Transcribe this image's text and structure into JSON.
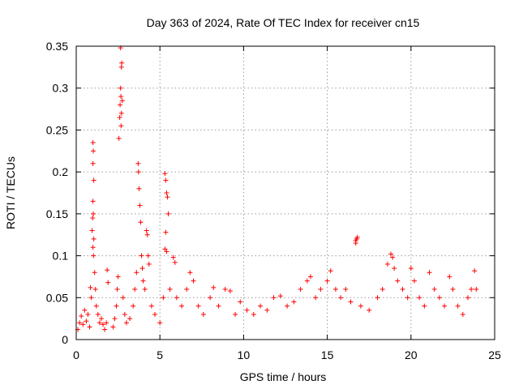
{
  "chart_data": {
    "type": "scatter",
    "title": "Day 363 of 2024, Rate Of TEC Index for receiver cn15",
    "xlabel": "GPS time / hours",
    "ylabel": "ROTI / TECUs",
    "xlim": [
      0,
      25
    ],
    "ylim": [
      0,
      0.35
    ],
    "xticks": [
      0,
      5,
      10,
      15,
      20,
      25
    ],
    "yticks": [
      0,
      0.05,
      0.1,
      0.15,
      0.2,
      0.25,
      0.3,
      0.35
    ],
    "xtick_labels": [
      "0",
      "5",
      "10",
      "15",
      "20",
      "25"
    ],
    "ytick_labels": [
      "0",
      "0.05",
      "0.1",
      "0.15",
      "0.2",
      "0.25",
      "0.3",
      "0.35"
    ],
    "grid": true,
    "marker": "+",
    "color": "#ff0000",
    "series": [
      {
        "name": "ROTI",
        "points": [
          [
            0.1,
            0.012
          ],
          [
            0.2,
            0.02
          ],
          [
            0.3,
            0.028
          ],
          [
            0.4,
            0.018
          ],
          [
            0.5,
            0.035
          ],
          [
            0.6,
            0.022
          ],
          [
            0.7,
            0.03
          ],
          [
            0.8,
            0.015
          ],
          [
            0.85,
            0.062
          ],
          [
            0.9,
            0.05
          ],
          [
            0.95,
            0.13
          ],
          [
            1.0,
            0.235
          ],
          [
            1.02,
            0.225
          ],
          [
            1.0,
            0.21
          ],
          [
            1.05,
            0.19
          ],
          [
            1.0,
            0.165
          ],
          [
            1.02,
            0.15
          ],
          [
            0.98,
            0.145
          ],
          [
            1.05,
            0.12
          ],
          [
            1.0,
            0.11
          ],
          [
            1.03,
            0.1
          ],
          [
            1.1,
            0.08
          ],
          [
            1.15,
            0.06
          ],
          [
            1.2,
            0.04
          ],
          [
            1.3,
            0.03
          ],
          [
            1.4,
            0.02
          ],
          [
            1.5,
            0.025
          ],
          [
            1.6,
            0.018
          ],
          [
            1.7,
            0.012
          ],
          [
            1.8,
            0.02
          ],
          [
            1.85,
            0.083
          ],
          [
            1.9,
            0.068
          ],
          [
            2.2,
            0.015
          ],
          [
            2.3,
            0.025
          ],
          [
            2.4,
            0.04
          ],
          [
            2.45,
            0.06
          ],
          [
            2.5,
            0.075
          ],
          [
            2.55,
            0.24
          ],
          [
            2.6,
            0.265
          ],
          [
            2.62,
            0.28
          ],
          [
            2.65,
            0.3
          ],
          [
            2.67,
            0.29
          ],
          [
            2.7,
            0.325
          ],
          [
            2.72,
            0.33
          ],
          [
            2.65,
            0.348
          ],
          [
            2.75,
            0.285
          ],
          [
            2.7,
            0.27
          ],
          [
            2.68,
            0.255
          ],
          [
            2.8,
            0.05
          ],
          [
            2.9,
            0.03
          ],
          [
            3.0,
            0.02
          ],
          [
            3.2,
            0.025
          ],
          [
            3.4,
            0.04
          ],
          [
            3.5,
            0.06
          ],
          [
            3.6,
            0.08
          ],
          [
            3.7,
            0.21
          ],
          [
            3.72,
            0.2
          ],
          [
            3.75,
            0.18
          ],
          [
            3.8,
            0.16
          ],
          [
            3.85,
            0.14
          ],
          [
            3.9,
            0.1
          ],
          [
            3.95,
            0.085
          ],
          [
            4.0,
            0.07
          ],
          [
            4.1,
            0.06
          ],
          [
            4.2,
            0.13
          ],
          [
            4.25,
            0.125
          ],
          [
            4.3,
            0.1
          ],
          [
            4.35,
            0.09
          ],
          [
            4.5,
            0.04
          ],
          [
            4.7,
            0.03
          ],
          [
            5.0,
            0.02
          ],
          [
            5.2,
            0.05
          ],
          [
            5.3,
            0.198
          ],
          [
            5.35,
            0.19
          ],
          [
            5.4,
            0.175
          ],
          [
            5.45,
            0.17
          ],
          [
            5.5,
            0.15
          ],
          [
            5.35,
            0.128
          ],
          [
            5.3,
            0.108
          ],
          [
            5.4,
            0.105
          ],
          [
            5.6,
            0.06
          ],
          [
            5.8,
            0.098
          ],
          [
            5.9,
            0.092
          ],
          [
            6.0,
            0.05
          ],
          [
            6.3,
            0.04
          ],
          [
            6.6,
            0.06
          ],
          [
            6.8,
            0.08
          ],
          [
            7.0,
            0.07
          ],
          [
            7.3,
            0.04
          ],
          [
            7.6,
            0.03
          ],
          [
            8.0,
            0.05
          ],
          [
            8.2,
            0.062
          ],
          [
            8.5,
            0.04
          ],
          [
            8.9,
            0.06
          ],
          [
            9.2,
            0.058
          ],
          [
            9.5,
            0.03
          ],
          [
            9.8,
            0.045
          ],
          [
            10.2,
            0.035
          ],
          [
            10.6,
            0.03
          ],
          [
            11.0,
            0.04
          ],
          [
            11.4,
            0.035
          ],
          [
            11.8,
            0.05
          ],
          [
            12.2,
            0.052
          ],
          [
            12.6,
            0.04
          ],
          [
            13.0,
            0.045
          ],
          [
            13.4,
            0.06
          ],
          [
            13.8,
            0.07
          ],
          [
            14.0,
            0.075
          ],
          [
            14.3,
            0.05
          ],
          [
            14.6,
            0.06
          ],
          [
            15.0,
            0.07
          ],
          [
            15.2,
            0.082
          ],
          [
            15.5,
            0.06
          ],
          [
            15.8,
            0.05
          ],
          [
            16.1,
            0.06
          ],
          [
            16.4,
            0.045
          ],
          [
            16.7,
            0.118
          ],
          [
            16.75,
            0.12
          ],
          [
            16.8,
            0.122
          ],
          [
            16.7,
            0.115
          ],
          [
            17.0,
            0.04
          ],
          [
            17.5,
            0.035
          ],
          [
            18.0,
            0.05
          ],
          [
            18.3,
            0.06
          ],
          [
            18.6,
            0.09
          ],
          [
            18.8,
            0.102
          ],
          [
            18.9,
            0.098
          ],
          [
            19.0,
            0.085
          ],
          [
            19.2,
            0.07
          ],
          [
            19.5,
            0.06
          ],
          [
            19.8,
            0.05
          ],
          [
            20.0,
            0.085
          ],
          [
            20.2,
            0.07
          ],
          [
            20.5,
            0.05
          ],
          [
            20.8,
            0.04
          ],
          [
            21.1,
            0.08
          ],
          [
            21.4,
            0.06
          ],
          [
            21.7,
            0.05
          ],
          [
            22.0,
            0.04
          ],
          [
            22.3,
            0.075
          ],
          [
            22.5,
            0.06
          ],
          [
            22.8,
            0.04
          ],
          [
            23.1,
            0.03
          ],
          [
            23.4,
            0.05
          ],
          [
            23.6,
            0.06
          ],
          [
            23.8,
            0.082
          ],
          [
            23.9,
            0.06
          ]
        ]
      }
    ]
  }
}
